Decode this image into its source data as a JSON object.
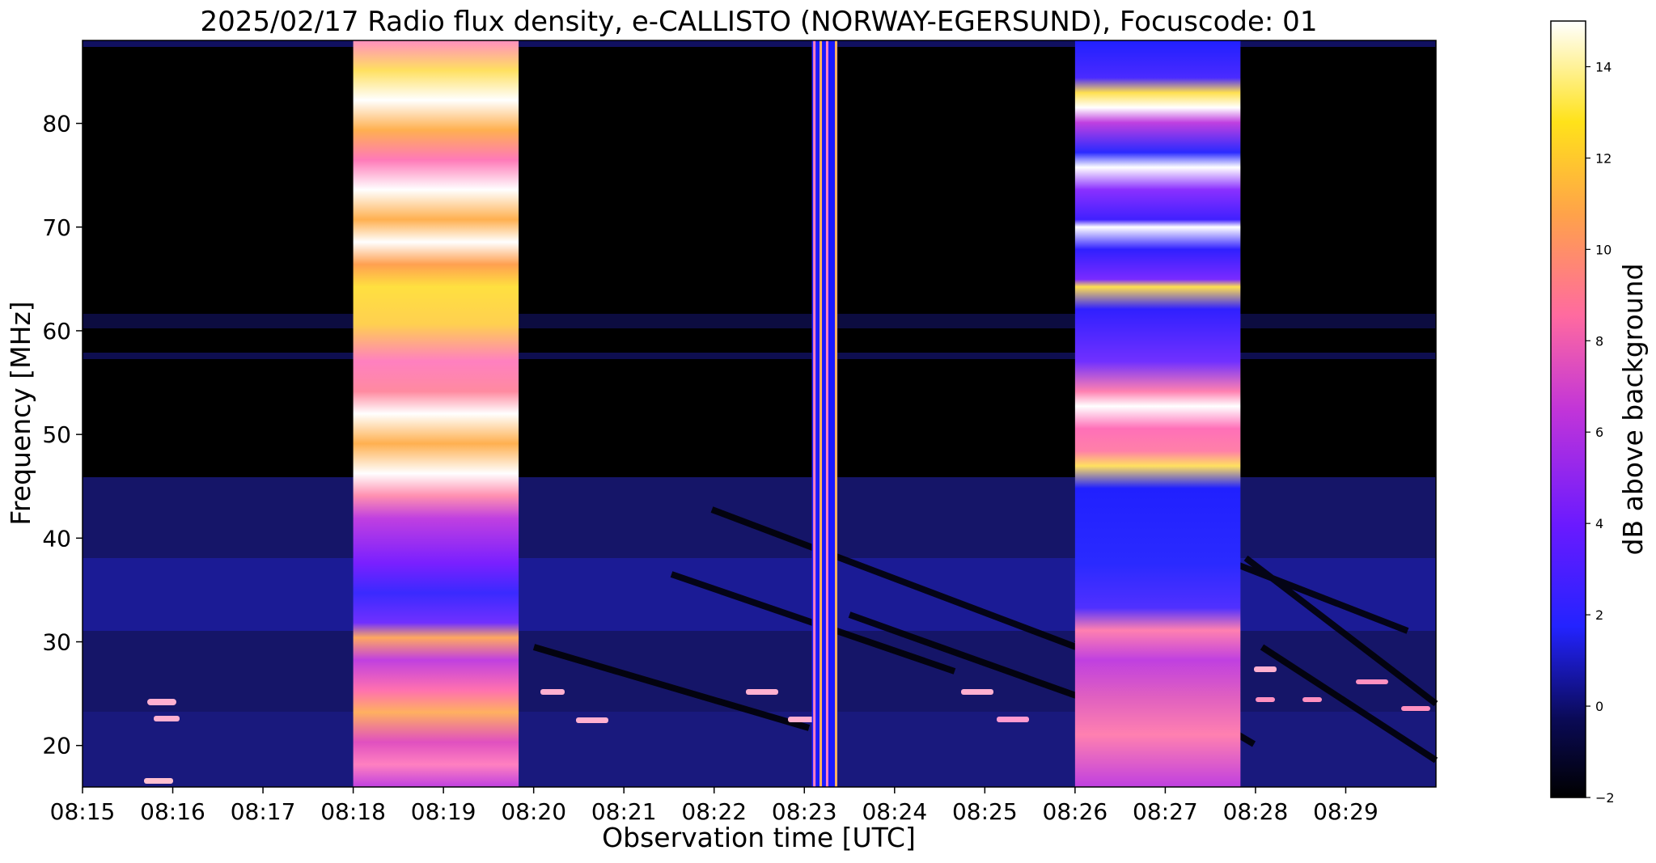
{
  "chart_data": {
    "type": "heatmap",
    "title": "2025/02/17  Radio flux density, e-CALLISTO (NORWAY-EGERSUND), Focuscode: 01",
    "xlabel": "Observation time [UTC]",
    "ylabel": "Frequency [MHz]",
    "colorbar_label": "dB above background",
    "colormap": "gnuplot2",
    "x_range": [
      "08:15",
      "08:30"
    ],
    "y_range": [
      16,
      88
    ],
    "color_range": [
      -2,
      15
    ],
    "x_ticks": [
      "08:15",
      "08:16",
      "08:17",
      "08:18",
      "08:19",
      "08:20",
      "08:21",
      "08:22",
      "08:23",
      "08:24",
      "08:25",
      "08:26",
      "08:27",
      "08:28",
      "08:29"
    ],
    "y_ticks": [
      "20",
      "30",
      "40",
      "50",
      "60",
      "70",
      "80"
    ],
    "colorbar_ticks": [
      "−2",
      "0",
      "2",
      "4",
      "6",
      "8",
      "10",
      "12",
      "14"
    ],
    "bursts": [
      {
        "start": "08:18:00",
        "end": "08:19:50",
        "peak_db": 15
      },
      {
        "start": "08:23:05",
        "end": "08:23:22",
        "peak_db": 12
      },
      {
        "start": "08:26:00",
        "end": "08:27:50",
        "peak_db": 15
      }
    ]
  }
}
